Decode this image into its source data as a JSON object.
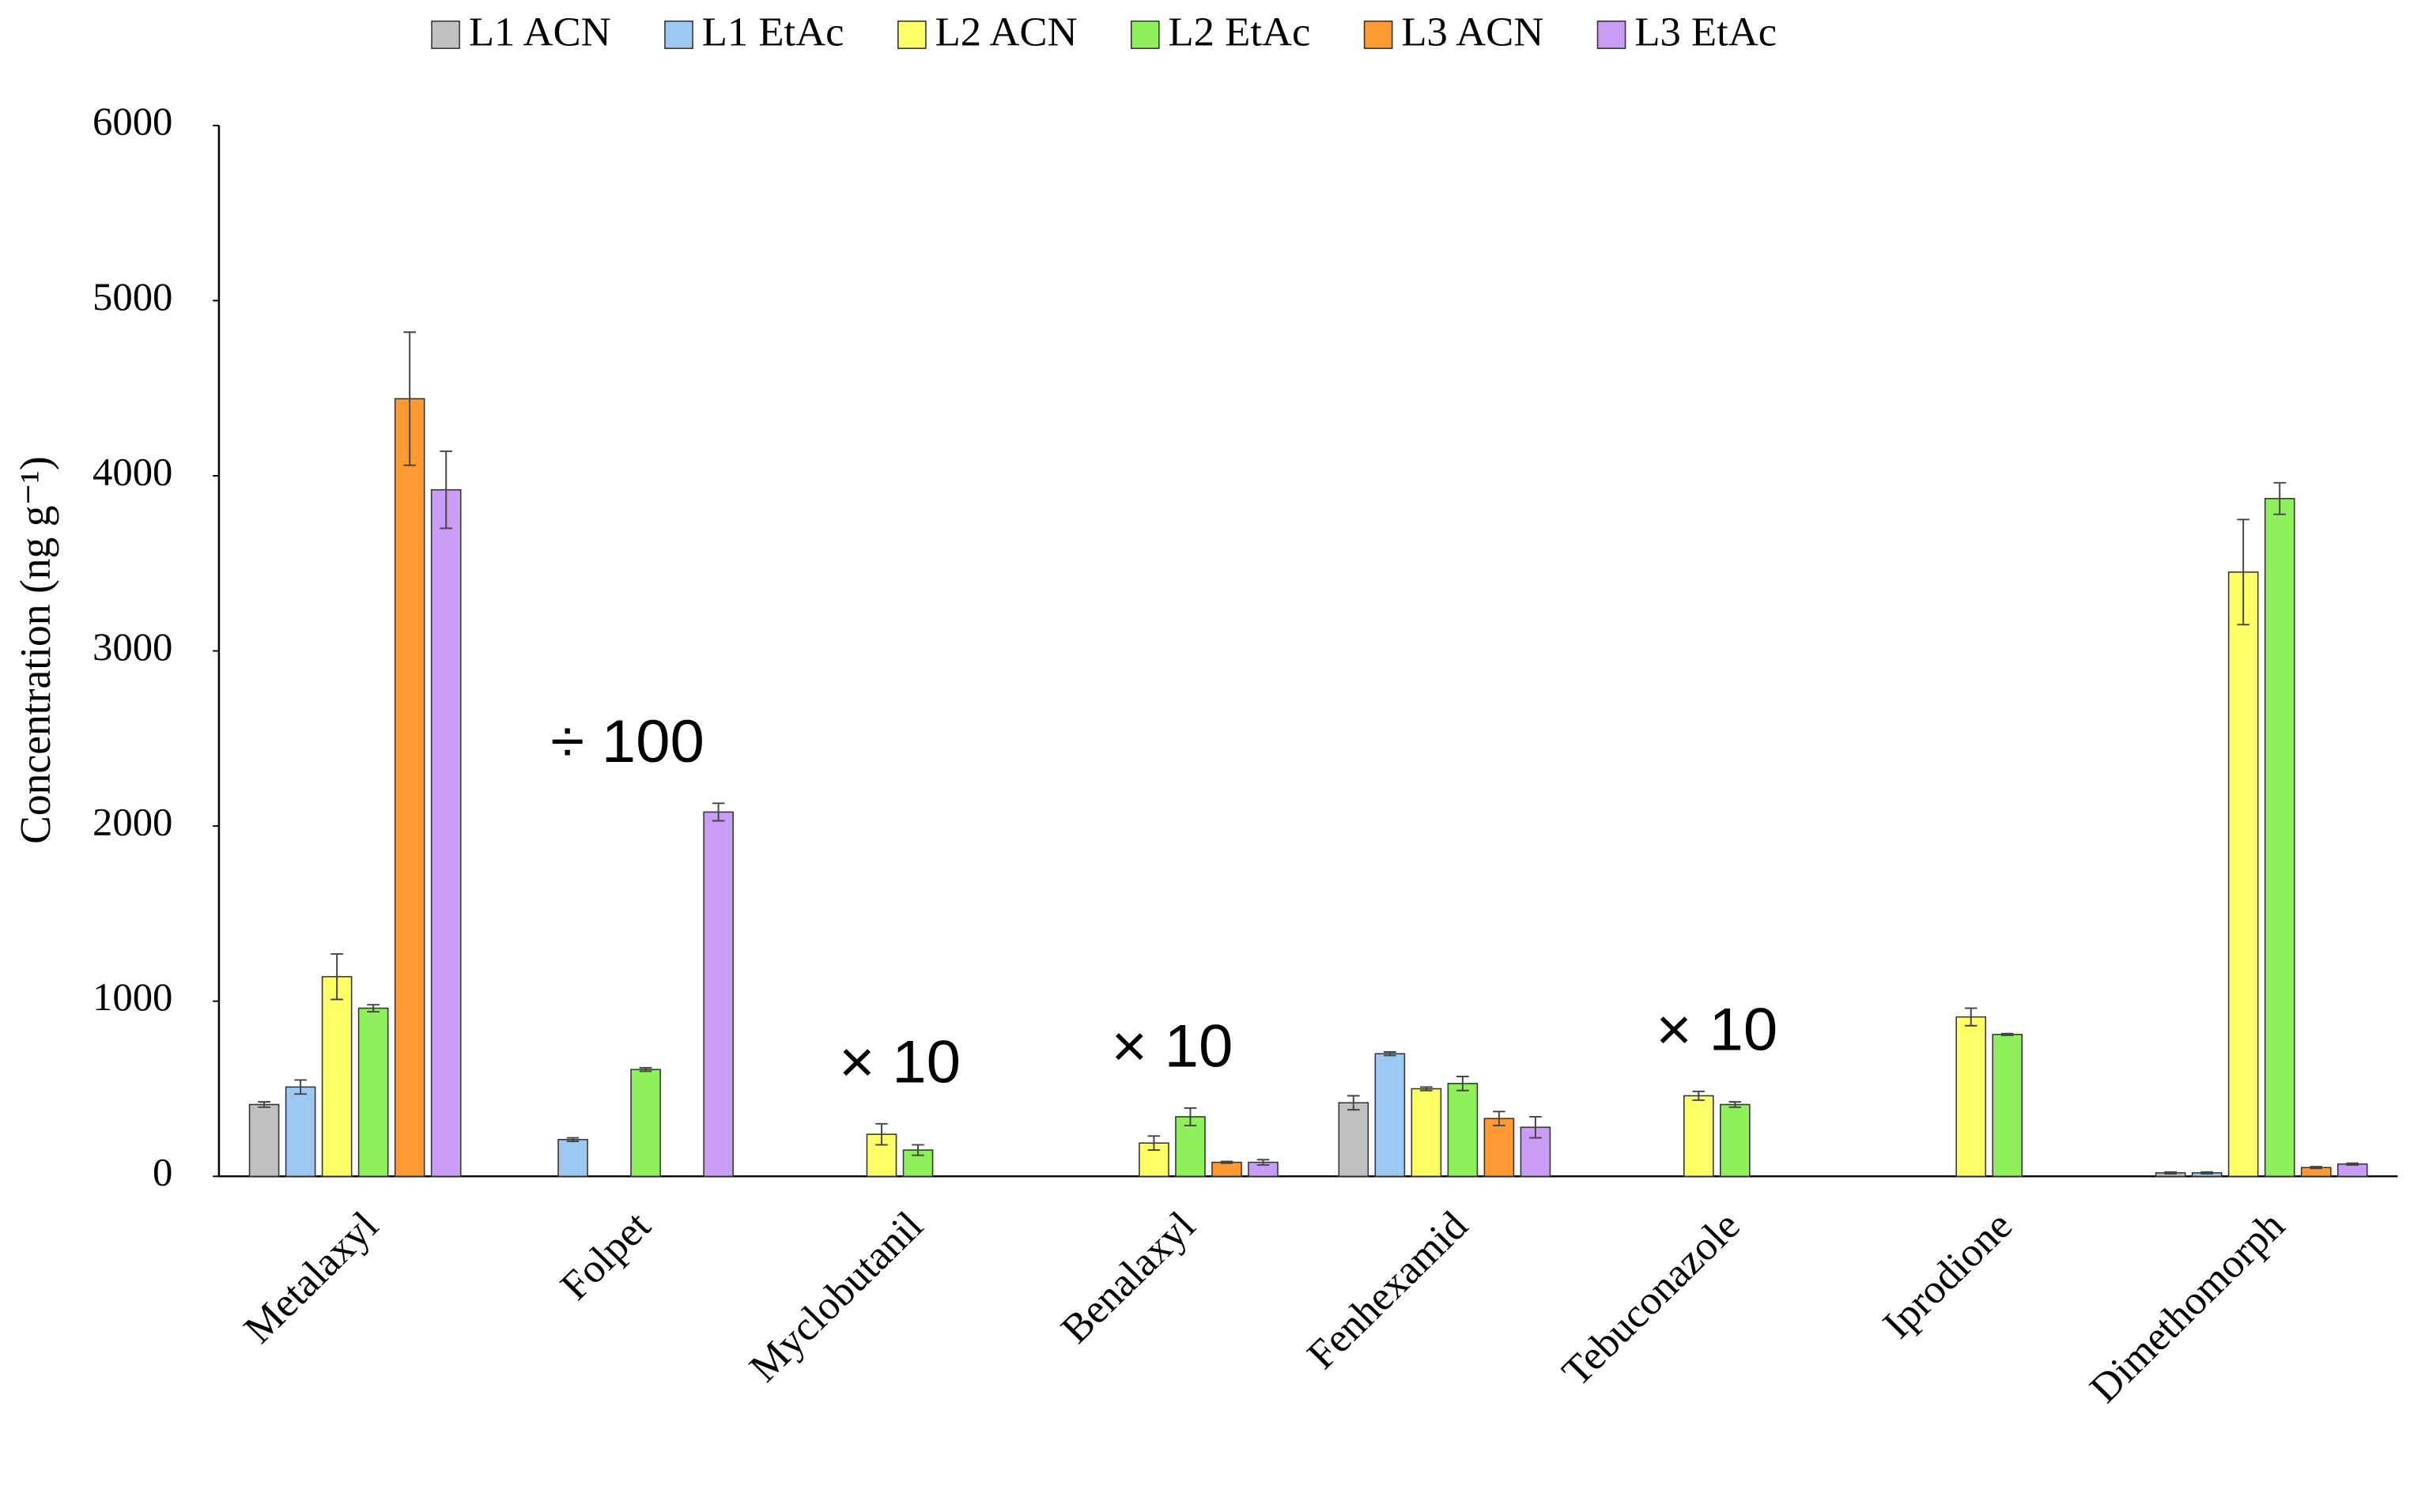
{
  "chart_data": {
    "type": "bar",
    "y_label": "Concentration (ng g⁻¹)",
    "categories": [
      "Metalaxyl",
      "Folpet",
      "Myclobutanil",
      "Benalaxyl",
      "Fenhexamid",
      "Tebuconazole",
      "Iprodione",
      "Dimethomorph"
    ],
    "series": [
      {
        "name": "L1 ACN",
        "color": "#c0c0c0",
        "values": [
          410,
          null,
          null,
          null,
          420,
          null,
          null,
          20
        ],
        "errors": [
          15,
          null,
          null,
          null,
          40,
          null,
          null,
          5
        ]
      },
      {
        "name": "L1 EtAc",
        "color": "#9dc8f2",
        "values": [
          510,
          210,
          null,
          null,
          700,
          null,
          null,
          20
        ],
        "errors": [
          40,
          10,
          null,
          null,
          10,
          null,
          null,
          5
        ]
      },
      {
        "name": "L2 ACN",
        "color": "#ffff66",
        "values": [
          1140,
          null,
          240,
          190,
          500,
          460,
          910,
          3450
        ],
        "errors": [
          130,
          null,
          60,
          40,
          10,
          25,
          50,
          300
        ]
      },
      {
        "name": "L2 EtAc",
        "color": "#8ef05a",
        "values": [
          960,
          610,
          150,
          340,
          530,
          410,
          810,
          3870
        ],
        "errors": [
          20,
          10,
          30,
          50,
          40,
          15,
          5,
          90
        ]
      },
      {
        "name": "L3 ACN",
        "color": "#ff9933",
        "values": [
          4440,
          null,
          null,
          80,
          330,
          null,
          null,
          50
        ],
        "errors": [
          380,
          null,
          null,
          5,
          40,
          null,
          null,
          5
        ]
      },
      {
        "name": "L3 EtAc",
        "color": "#c99cf5",
        "values": [
          3920,
          2080,
          null,
          80,
          280,
          null,
          null,
          70
        ],
        "errors": [
          220,
          50,
          null,
          15,
          60,
          null,
          null,
          5
        ]
      }
    ],
    "annotations": [
      {
        "text": "÷ 100",
        "category": "Folpet"
      },
      {
        "text": "× 10",
        "category": "Myclobutanil"
      },
      {
        "text": "× 10",
        "category": "Benalaxyl"
      },
      {
        "text": "× 10",
        "category": "Tebuconazole"
      }
    ],
    "ylim": [
      0,
      6000
    ],
    "yticks": [
      0,
      1000,
      2000,
      3000,
      4000,
      5000,
      6000
    ],
    "grid": false,
    "legend": "top"
  }
}
